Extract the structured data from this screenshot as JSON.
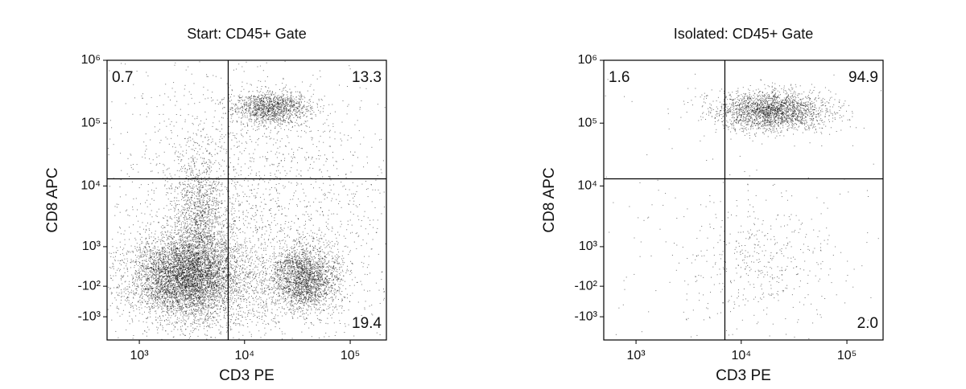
{
  "chart_data": [
    {
      "type": "flow",
      "title": "Start: CD45+ Gate",
      "xlabel": "CD3 PE",
      "ylabel": "CD8 APC",
      "scale": "biexponential",
      "xlim": [
        480,
        220000
      ],
      "ylim": [
        -2500,
        1000000
      ],
      "xticks": [
        {
          "value": 1000,
          "label": "10³"
        },
        {
          "value": 10000,
          "label": "10⁴"
        },
        {
          "value": 100000,
          "label": "10⁵"
        }
      ],
      "yticks": [
        {
          "value": -1000,
          "label": "-10³"
        },
        {
          "value": -100,
          "label": "-10²"
        },
        {
          "value": 1000,
          "label": "10³"
        },
        {
          "value": 10000,
          "label": "10⁴"
        },
        {
          "value": 100000,
          "label": "10⁵"
        },
        {
          "value": 1000000,
          "label": "10⁶"
        }
      ],
      "gate": {
        "x": 7000,
        "y": 13000
      },
      "quadrant_values": [
        0.7,
        13.3,
        19.4
      ],
      "value_labels": [
        "0.7",
        "13.3",
        "19.4"
      ]
    },
    {
      "type": "flow",
      "title": "Isolated: CD45+ Gate",
      "xlabel": "CD3 PE",
      "ylabel": "CD8 APC",
      "scale": "biexponential",
      "xlim": [
        480,
        220000
      ],
      "ylim": [
        -2500,
        1000000
      ],
      "xticks": [
        {
          "value": 1000,
          "label": "10³"
        },
        {
          "value": 10000,
          "label": "10⁴"
        },
        {
          "value": 100000,
          "label": "10⁵"
        }
      ],
      "yticks": [
        {
          "value": -1000,
          "label": "-10³"
        },
        {
          "value": -100,
          "label": "-10²"
        },
        {
          "value": 1000,
          "label": "10³"
        },
        {
          "value": 10000,
          "label": "10⁴"
        },
        {
          "value": 100000,
          "label": "10⁵"
        },
        {
          "value": 1000000,
          "label": "10⁶"
        }
      ],
      "gate": {
        "x": 7000,
        "y": 13000
      },
      "quadrant_values": [
        1.6,
        94.9,
        2.0
      ],
      "value_labels": [
        "1.6",
        "94.9",
        "2.0"
      ]
    }
  ]
}
